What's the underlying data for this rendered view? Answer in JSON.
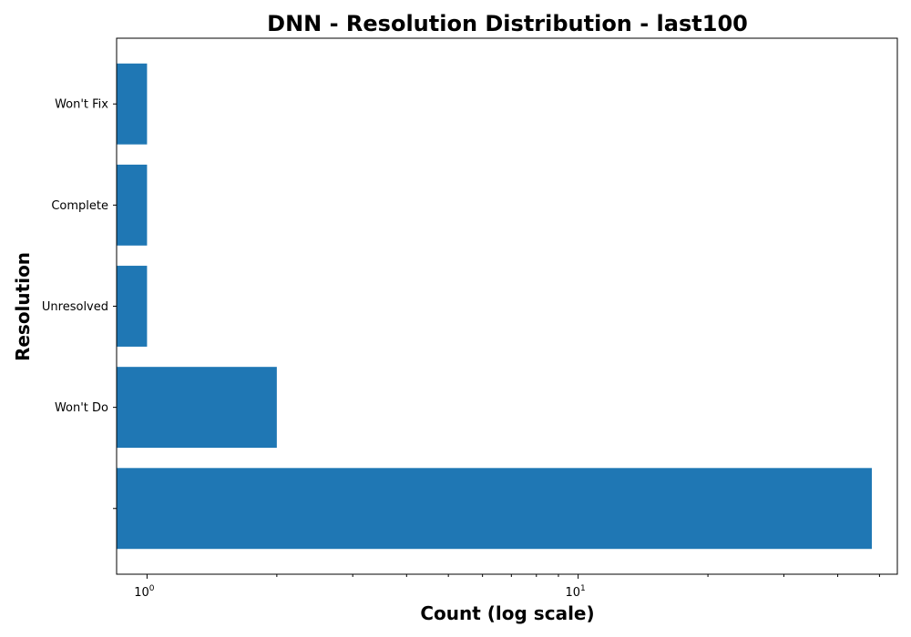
{
  "chart_data": {
    "type": "bar",
    "orientation": "horizontal",
    "title": "DNN - Resolution Distribution - last100",
    "xlabel": "Count (log scale)",
    "ylabel": "Resolution",
    "x_scale": "log",
    "xlim": [
      0.85,
      55
    ],
    "x_major_ticks": [
      1,
      10
    ],
    "x_major_tick_labels": [
      {
        "base": "10",
        "exp": "0"
      },
      {
        "base": "10",
        "exp": "1"
      }
    ],
    "x_minor_ticks": [
      2,
      3,
      4,
      5,
      6,
      7,
      8,
      9,
      20,
      30,
      40,
      50
    ],
    "categories": [
      "",
      "Won't Do",
      "Unresolved",
      "Complete",
      "Won't Fix"
    ],
    "values": [
      48,
      2,
      1,
      1,
      1
    ],
    "color": "#1f77b4",
    "grid": false,
    "legend": false
  }
}
